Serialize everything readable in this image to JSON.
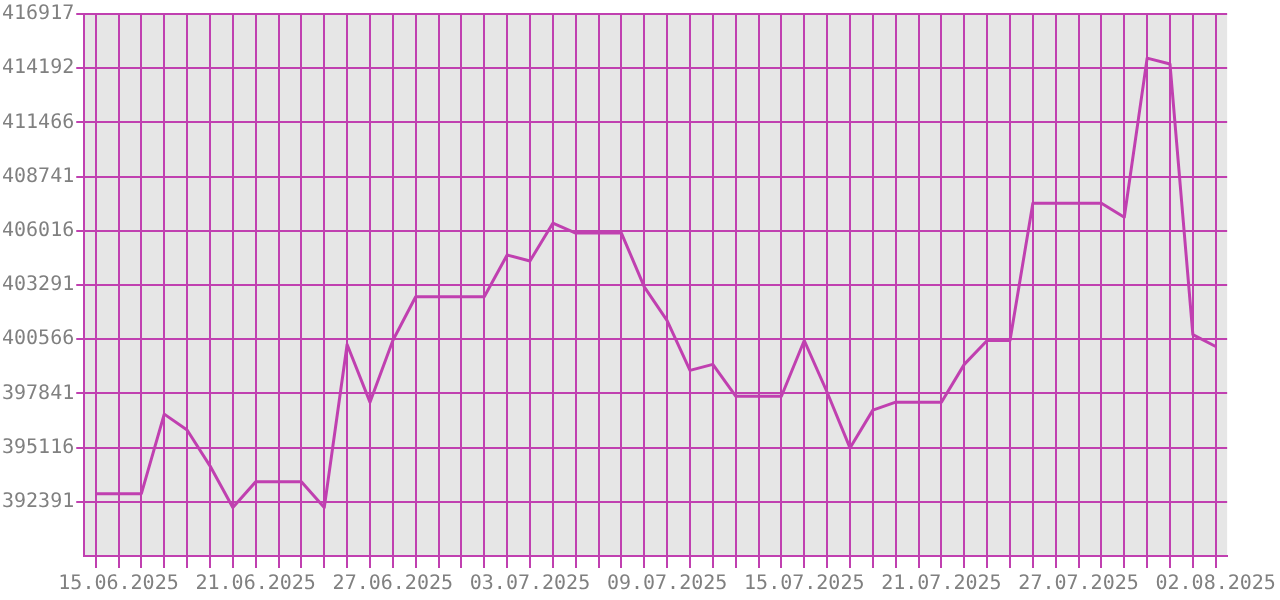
{
  "chart_data": {
    "type": "line",
    "categories": [
      null,
      "15.06.2025",
      null,
      null,
      null,
      null,
      null,
      "21.06.2025",
      null,
      null,
      null,
      null,
      null,
      "27.06.2025",
      null,
      null,
      null,
      null,
      null,
      "03.07.2025",
      null,
      null,
      null,
      null,
      null,
      "09.07.2025",
      null,
      null,
      null,
      null,
      null,
      "15.07.2025",
      null,
      null,
      null,
      null,
      null,
      "21.07.2025",
      null,
      null,
      null,
      null,
      null,
      "27.07.2025",
      null,
      null,
      null,
      null,
      null,
      "02.08.2025"
    ],
    "series": [
      {
        "color": "#c040b0",
        "values": [
          392800,
          392800,
          392800,
          396800,
          396000,
          394200,
          392100,
          393400,
          393400,
          393400,
          392100,
          400300,
          397400,
          400500,
          402700,
          402700,
          402700,
          402700,
          404800,
          404500,
          406400,
          405900,
          405900,
          405900,
          403200,
          401500,
          399000,
          399300,
          397700,
          397700,
          397700,
          400500,
          397900,
          395100,
          397000,
          397400,
          397400,
          397400,
          399300,
          400500,
          400500,
          407400,
          407400,
          407400,
          407400,
          406700,
          414700,
          414400,
          400800,
          400200
        ]
      }
    ],
    "ylim": [
      389666,
      416917
    ],
    "yticks": [
      392391,
      395116,
      397841,
      400566,
      403291,
      406016,
      408741,
      411466,
      414192,
      416917
    ],
    "grid": true,
    "legend": false,
    "marker": "none",
    "line_style": "solid"
  }
}
